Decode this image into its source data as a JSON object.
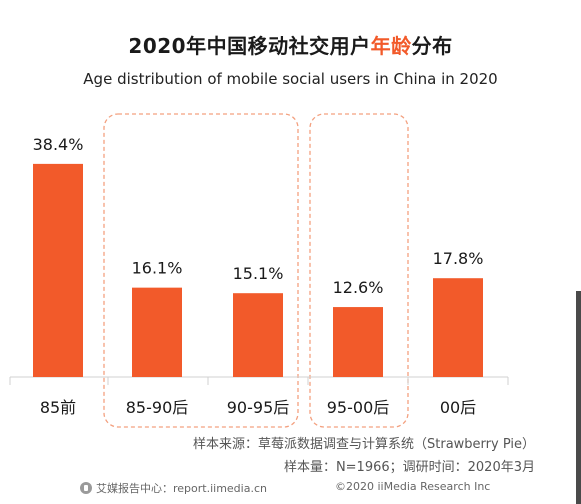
{
  "title_main": "2020年中国移动社交用户",
  "title_accent": "年龄",
  "title_tail": "分布",
  "subtitle": "Age distribution of mobile social users in China in 2020",
  "notes": {
    "source": "样本来源：草莓派数据调查与计算系统（Strawberry Pie）",
    "sample": "样本量：N=1966；调研时间：2020年3月"
  },
  "footer": {
    "left_text": "艾媒报告中心：report.iimedia.cn",
    "right_text": "©2020  iiMedia Research  Inc"
  },
  "colors": {
    "bar": "#f25a2a",
    "accent": "#f25a2a",
    "highlight_box": "#f3a07f"
  },
  "icons": {
    "footer_logo": "iimedia-logo-icon"
  },
  "chart_data": {
    "type": "bar",
    "categories": [
      "85前",
      "85-90后",
      "90-95后",
      "95-00后",
      "00后"
    ],
    "values": [
      38.4,
      16.1,
      15.1,
      12.6,
      17.8
    ],
    "value_labels": [
      "38.4%",
      "16.1%",
      "15.1%",
      "12.6%",
      "17.8%"
    ],
    "title": "2020年中国移动社交用户年龄分布",
    "subtitle": "Age distribution of mobile social users in China in 2020",
    "xlabel": "",
    "ylabel": "",
    "ylim": [
      0,
      40
    ],
    "grid": false,
    "legend": "none",
    "highlight_groups": [
      [
        "85-90后",
        "90-95后"
      ],
      [
        "95-00后"
      ]
    ]
  }
}
